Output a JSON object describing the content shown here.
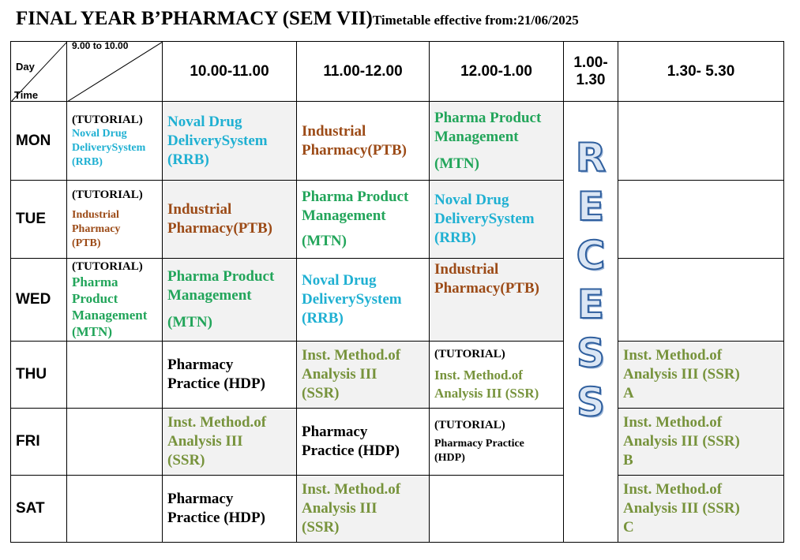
{
  "title": "FINAL YEAR B’PHARMACY (SEM VII)",
  "effective": "Timetable effective from:21/06/2025",
  "corner": {
    "day": "Day",
    "time": "Time"
  },
  "headers": {
    "slot1": "9.00 to 10.00",
    "slot2": "10.00-11.00",
    "slot3": "11.00-12.00",
    "slot4": "12.00-1.00",
    "slot5a": "1.00-",
    "slot5b": "1.30",
    "slot6": "1.30- 5.30"
  },
  "recess": [
    "R",
    "E",
    "C",
    "E",
    "S",
    "S"
  ],
  "colors": {
    "blue": "#1fb0d2",
    "brown": "#9c4b17",
    "green": "#22a55a",
    "olive": "#77933c",
    "shade": "#f2f2f2"
  },
  "rows": {
    "mon": {
      "day": "MON",
      "c1": {
        "tut": "(TUTORIAL)",
        "l1": "Noval Drug",
        "l2": "DeliverySystem",
        "l3": "(RRB)"
      },
      "c2": {
        "l1": "Noval Drug",
        "l2": "DeliverySystem",
        "l3": "(RRB)"
      },
      "c3": {
        "l1": "Industrial",
        "l2": "Pharmacy(PTB)"
      },
      "c4": {
        "l1": "Pharma Product",
        "l2": "Management",
        "l3": "(MTN)"
      }
    },
    "tue": {
      "day": "TUE",
      "c1": {
        "tut": "(TUTORIAL)",
        "l1": "Industrial",
        "l2": "Pharmacy",
        "l3": "(PTB)"
      },
      "c2": {
        "l1": "Industrial",
        "l2": "Pharmacy(PTB)"
      },
      "c3": {
        "l1": "Pharma Product",
        "l2": "Management",
        "l3": "(MTN)"
      },
      "c4": {
        "l1": "Noval Drug",
        "l2": "DeliverySystem",
        "l3": "(RRB)"
      }
    },
    "wed": {
      "day": "WED",
      "c1": {
        "tut": "(TUTORIAL)",
        "l1": "Pharma",
        "l2": "Product",
        "l3": "Management",
        "l4": "(MTN)"
      },
      "c2": {
        "l1": "Pharma Product",
        "l2": "Management",
        "l3": "(MTN)"
      },
      "c3": {
        "l1": "Noval Drug",
        "l2": "DeliverySystem",
        "l3": "(RRB)"
      },
      "c4": {
        "l1": "Industrial",
        "l2": "Pharmacy(PTB)"
      }
    },
    "thu": {
      "day": "THU",
      "c2": {
        "l1": "Pharmacy",
        "l2": "Practice (HDP)"
      },
      "c3": {
        "l1": "Inst. Method.of",
        "l2": "Analysis  III",
        "l3": "(SSR)"
      },
      "c4": {
        "tut": "(TUTORIAL)",
        "l1": "Inst. Method.of",
        "l2": "Analysis  III  (SSR)"
      },
      "c6": {
        "l1": "Inst. Method.of",
        "l2": "Analysis  III  (SSR)",
        "l3": "A"
      }
    },
    "fri": {
      "day": "FRI",
      "c2": {
        "l1": "Inst. Method.of",
        "l2": "Analysis  III",
        "l3": "(SSR)"
      },
      "c3": {
        "l1": "Pharmacy",
        "l2": "Practice (HDP)"
      },
      "c4": {
        "tut": "(TUTORIAL)",
        "l1": "Pharmacy Practice",
        "l2": "(HDP)"
      },
      "c6": {
        "l1": "Inst. Method.of",
        "l2": "Analysis  III  (SSR)",
        "l3": "B"
      }
    },
    "sat": {
      "day": "SAT",
      "c2": {
        "l1": "Pharmacy",
        "l2": "Practice (HDP)"
      },
      "c3": {
        "l1": "Inst. Method.of",
        "l2": "Analysis  III",
        "l3": "(SSR)"
      },
      "c6": {
        "l1": "Inst. Method.of",
        "l2": "Analysis  III  (SSR)",
        "l3": "C"
      }
    }
  }
}
